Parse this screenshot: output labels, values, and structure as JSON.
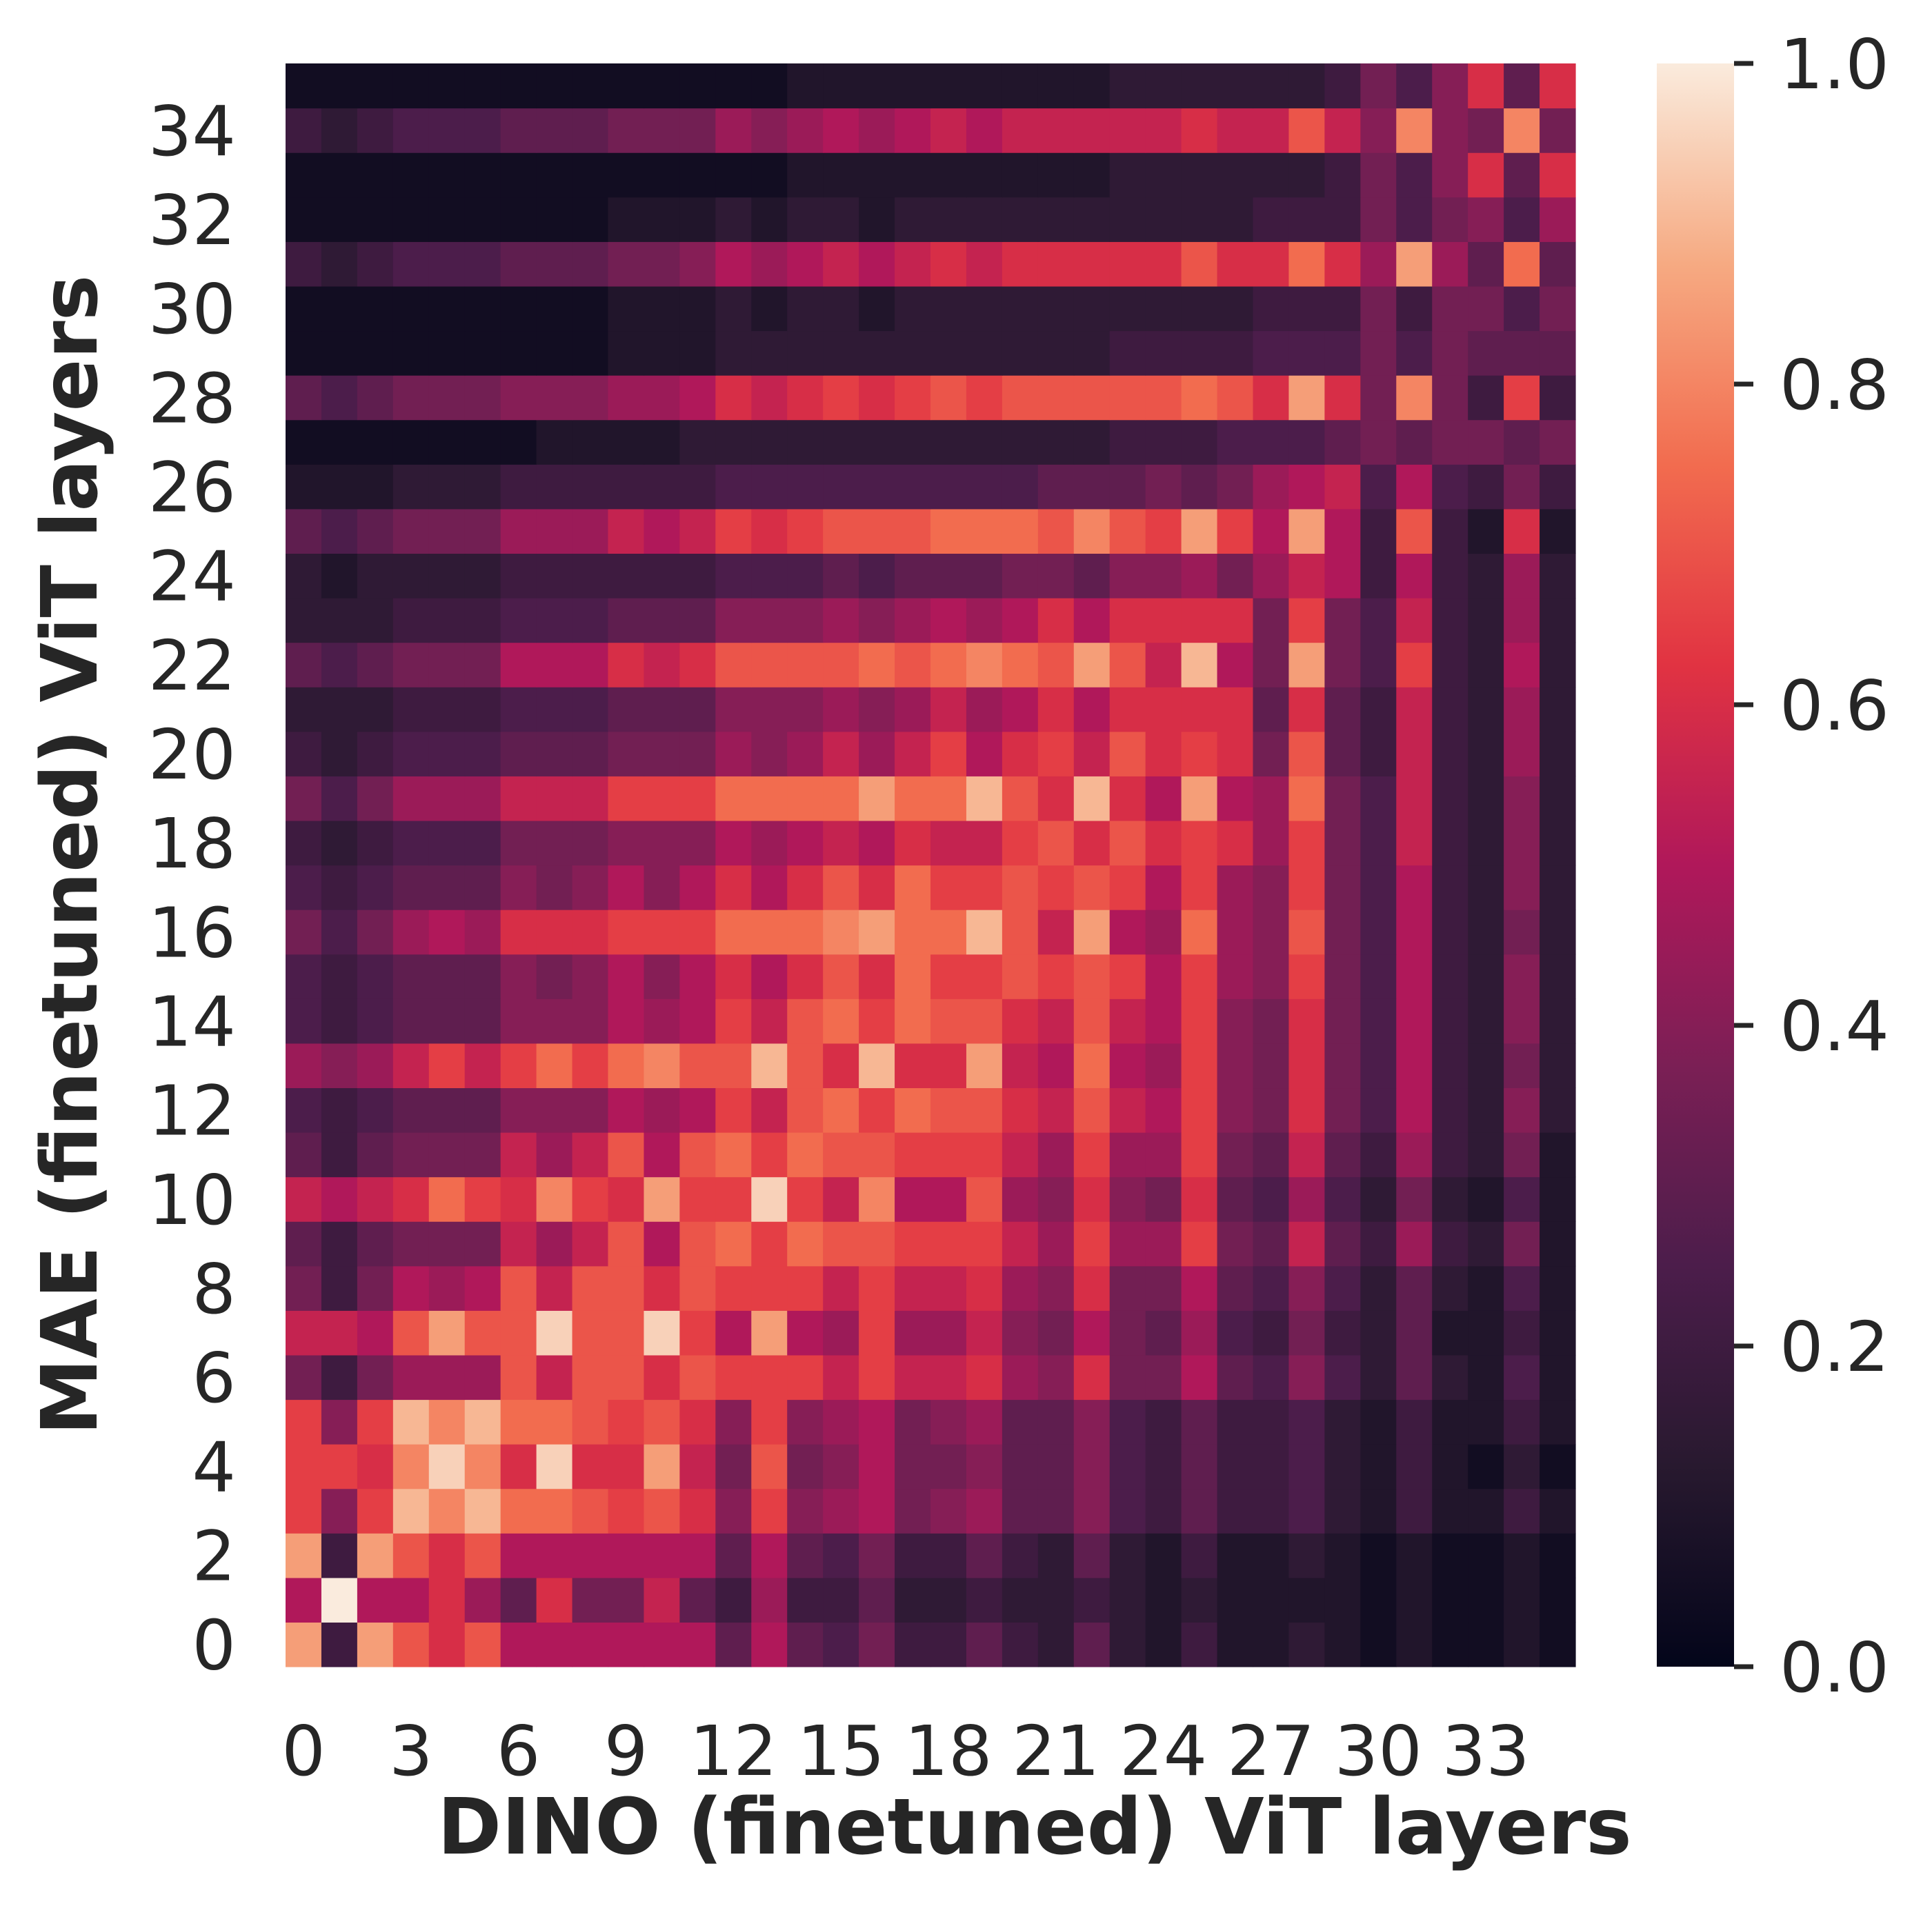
{
  "chart_data": {
    "type": "heatmap",
    "title": "",
    "xlabel": "DINO (finetuned) ViT layers",
    "ylabel": "MAE (finetuned) ViT layers",
    "x_tick_labels": [
      "0",
      "3",
      "6",
      "9",
      "12",
      "15",
      "18",
      "21",
      "24",
      "27",
      "30",
      "33"
    ],
    "x_tick_values": [
      0,
      3,
      6,
      9,
      12,
      15,
      18,
      21,
      24,
      27,
      30,
      33
    ],
    "y_tick_labels": [
      "0",
      "2",
      "4",
      "6",
      "8",
      "10",
      "12",
      "14",
      "16",
      "18",
      "20",
      "22",
      "24",
      "26",
      "28",
      "30",
      "32",
      "34"
    ],
    "y_tick_values": [
      0,
      2,
      4,
      6,
      8,
      10,
      12,
      14,
      16,
      18,
      20,
      22,
      24,
      26,
      28,
      30,
      32,
      34
    ],
    "n_cols": 36,
    "n_rows": 36,
    "colormap": "rocket",
    "colorbar": {
      "range": [
        0,
        1
      ],
      "tick_values": [
        0,
        0.2,
        0.4,
        0.6,
        0.8,
        1.0
      ],
      "tick_labels": [
        "0.0",
        "0.2",
        "0.4",
        "0.6",
        "0.8",
        "1.0"
      ]
    },
    "values": [
      [
        0.85,
        0.2,
        0.85,
        0.7,
        0.6,
        0.7,
        0.5,
        0.5,
        0.5,
        0.5,
        0.5,
        0.5,
        0.3,
        0.5,
        0.3,
        0.25,
        0.35,
        0.2,
        0.2,
        0.3,
        0.2,
        0.15,
        0.3,
        0.15,
        0.1,
        0.2,
        0.1,
        0.1,
        0.15,
        0.1,
        0.05,
        0.1,
        0.05,
        0.05,
        0.1,
        0.05
      ],
      [
        0.5,
        1.0,
        0.5,
        0.5,
        0.6,
        0.45,
        0.3,
        0.6,
        0.35,
        0.35,
        0.55,
        0.3,
        0.2,
        0.45,
        0.2,
        0.2,
        0.3,
        0.15,
        0.15,
        0.2,
        0.15,
        0.15,
        0.2,
        0.15,
        0.1,
        0.15,
        0.1,
        0.1,
        0.1,
        0.1,
        0.05,
        0.1,
        0.05,
        0.05,
        0.1,
        0.05
      ],
      [
        0.85,
        0.2,
        0.85,
        0.7,
        0.6,
        0.7,
        0.5,
        0.5,
        0.5,
        0.5,
        0.5,
        0.5,
        0.3,
        0.5,
        0.3,
        0.25,
        0.35,
        0.2,
        0.2,
        0.3,
        0.2,
        0.15,
        0.3,
        0.15,
        0.1,
        0.2,
        0.1,
        0.1,
        0.15,
        0.1,
        0.05,
        0.1,
        0.05,
        0.05,
        0.1,
        0.05
      ],
      [
        0.65,
        0.4,
        0.65,
        0.9,
        0.8,
        0.9,
        0.75,
        0.75,
        0.7,
        0.65,
        0.7,
        0.6,
        0.4,
        0.65,
        0.4,
        0.45,
        0.5,
        0.35,
        0.4,
        0.45,
        0.3,
        0.3,
        0.4,
        0.25,
        0.2,
        0.3,
        0.2,
        0.2,
        0.25,
        0.15,
        0.1,
        0.2,
        0.1,
        0.1,
        0.2,
        0.1
      ],
      [
        0.65,
        0.65,
        0.6,
        0.8,
        0.95,
        0.8,
        0.6,
        0.95,
        0.6,
        0.6,
        0.85,
        0.55,
        0.35,
        0.7,
        0.35,
        0.4,
        0.5,
        0.35,
        0.35,
        0.4,
        0.3,
        0.3,
        0.4,
        0.25,
        0.2,
        0.3,
        0.2,
        0.2,
        0.25,
        0.15,
        0.1,
        0.2,
        0.1,
        0.05,
        0.15,
        0.05
      ],
      [
        0.65,
        0.4,
        0.65,
        0.9,
        0.8,
        0.9,
        0.75,
        0.75,
        0.7,
        0.65,
        0.7,
        0.6,
        0.4,
        0.65,
        0.4,
        0.45,
        0.5,
        0.35,
        0.4,
        0.45,
        0.3,
        0.3,
        0.4,
        0.25,
        0.2,
        0.3,
        0.2,
        0.2,
        0.25,
        0.15,
        0.1,
        0.2,
        0.1,
        0.1,
        0.2,
        0.1
      ],
      [
        0.35,
        0.2,
        0.35,
        0.45,
        0.45,
        0.45,
        0.7,
        0.55,
        0.7,
        0.7,
        0.6,
        0.7,
        0.65,
        0.65,
        0.65,
        0.55,
        0.65,
        0.55,
        0.55,
        0.6,
        0.45,
        0.4,
        0.6,
        0.35,
        0.35,
        0.5,
        0.3,
        0.25,
        0.4,
        0.25,
        0.15,
        0.3,
        0.15,
        0.1,
        0.25,
        0.1
      ],
      [
        0.55,
        0.55,
        0.5,
        0.7,
        0.85,
        0.7,
        0.7,
        0.95,
        0.7,
        0.7,
        0.95,
        0.65,
        0.5,
        0.85,
        0.5,
        0.45,
        0.65,
        0.45,
        0.45,
        0.55,
        0.4,
        0.35,
        0.5,
        0.35,
        0.3,
        0.45,
        0.25,
        0.2,
        0.35,
        0.2,
        0.15,
        0.3,
        0.1,
        0.1,
        0.2,
        0.1
      ],
      [
        0.35,
        0.2,
        0.35,
        0.5,
        0.45,
        0.5,
        0.7,
        0.55,
        0.7,
        0.7,
        0.6,
        0.7,
        0.65,
        0.65,
        0.65,
        0.55,
        0.65,
        0.55,
        0.55,
        0.6,
        0.45,
        0.4,
        0.6,
        0.35,
        0.35,
        0.5,
        0.3,
        0.25,
        0.4,
        0.25,
        0.15,
        0.3,
        0.15,
        0.1,
        0.25,
        0.1
      ],
      [
        0.3,
        0.2,
        0.3,
        0.35,
        0.35,
        0.35,
        0.55,
        0.45,
        0.55,
        0.7,
        0.5,
        0.7,
        0.75,
        0.65,
        0.75,
        0.7,
        0.7,
        0.65,
        0.65,
        0.65,
        0.55,
        0.45,
        0.65,
        0.45,
        0.45,
        0.65,
        0.35,
        0.3,
        0.55,
        0.3,
        0.2,
        0.45,
        0.2,
        0.15,
        0.35,
        0.1
      ],
      [
        0.55,
        0.5,
        0.55,
        0.6,
        0.75,
        0.65,
        0.6,
        0.8,
        0.65,
        0.6,
        0.85,
        0.65,
        0.65,
        0.95,
        0.65,
        0.55,
        0.8,
        0.5,
        0.5,
        0.7,
        0.45,
        0.4,
        0.6,
        0.4,
        0.35,
        0.6,
        0.3,
        0.25,
        0.45,
        0.25,
        0.15,
        0.35,
        0.15,
        0.1,
        0.25,
        0.1
      ],
      [
        0.3,
        0.2,
        0.3,
        0.35,
        0.35,
        0.35,
        0.55,
        0.45,
        0.55,
        0.7,
        0.5,
        0.7,
        0.75,
        0.65,
        0.75,
        0.7,
        0.7,
        0.65,
        0.65,
        0.65,
        0.55,
        0.45,
        0.65,
        0.45,
        0.45,
        0.65,
        0.35,
        0.3,
        0.55,
        0.3,
        0.2,
        0.45,
        0.2,
        0.15,
        0.35,
        0.1
      ],
      [
        0.25,
        0.2,
        0.25,
        0.3,
        0.3,
        0.3,
        0.4,
        0.4,
        0.4,
        0.5,
        0.45,
        0.5,
        0.65,
        0.55,
        0.7,
        0.75,
        0.65,
        0.75,
        0.7,
        0.7,
        0.6,
        0.55,
        0.7,
        0.55,
        0.5,
        0.65,
        0.4,
        0.35,
        0.6,
        0.35,
        0.25,
        0.5,
        0.2,
        0.15,
        0.4,
        0.15
      ],
      [
        0.45,
        0.4,
        0.45,
        0.55,
        0.65,
        0.55,
        0.65,
        0.75,
        0.65,
        0.75,
        0.8,
        0.7,
        0.7,
        0.9,
        0.7,
        0.6,
        0.9,
        0.6,
        0.6,
        0.85,
        0.55,
        0.5,
        0.75,
        0.5,
        0.45,
        0.65,
        0.4,
        0.35,
        0.6,
        0.35,
        0.25,
        0.5,
        0.2,
        0.15,
        0.35,
        0.15
      ],
      [
        0.25,
        0.2,
        0.25,
        0.3,
        0.3,
        0.3,
        0.4,
        0.4,
        0.4,
        0.5,
        0.45,
        0.5,
        0.65,
        0.55,
        0.7,
        0.75,
        0.65,
        0.75,
        0.7,
        0.7,
        0.6,
        0.55,
        0.7,
        0.55,
        0.5,
        0.65,
        0.4,
        0.35,
        0.6,
        0.35,
        0.25,
        0.5,
        0.2,
        0.15,
        0.4,
        0.15
      ],
      [
        0.25,
        0.2,
        0.25,
        0.3,
        0.3,
        0.3,
        0.4,
        0.35,
        0.4,
        0.5,
        0.4,
        0.5,
        0.6,
        0.5,
        0.6,
        0.7,
        0.6,
        0.75,
        0.65,
        0.65,
        0.7,
        0.65,
        0.7,
        0.65,
        0.5,
        0.65,
        0.45,
        0.4,
        0.65,
        0.35,
        0.25,
        0.5,
        0.2,
        0.15,
        0.4,
        0.15
      ],
      [
        0.35,
        0.25,
        0.35,
        0.45,
        0.5,
        0.45,
        0.6,
        0.6,
        0.6,
        0.65,
        0.65,
        0.65,
        0.75,
        0.75,
        0.75,
        0.8,
        0.85,
        0.75,
        0.75,
        0.9,
        0.7,
        0.55,
        0.85,
        0.5,
        0.45,
        0.75,
        0.45,
        0.4,
        0.7,
        0.35,
        0.25,
        0.5,
        0.2,
        0.15,
        0.35,
        0.15
      ],
      [
        0.25,
        0.2,
        0.25,
        0.3,
        0.3,
        0.3,
        0.4,
        0.35,
        0.4,
        0.5,
        0.4,
        0.5,
        0.6,
        0.5,
        0.6,
        0.7,
        0.6,
        0.75,
        0.65,
        0.65,
        0.7,
        0.65,
        0.7,
        0.65,
        0.5,
        0.65,
        0.45,
        0.4,
        0.65,
        0.35,
        0.25,
        0.5,
        0.2,
        0.15,
        0.4,
        0.15
      ],
      [
        0.2,
        0.15,
        0.2,
        0.25,
        0.25,
        0.25,
        0.35,
        0.35,
        0.35,
        0.4,
        0.4,
        0.4,
        0.5,
        0.45,
        0.5,
        0.55,
        0.5,
        0.6,
        0.55,
        0.55,
        0.65,
        0.7,
        0.6,
        0.7,
        0.6,
        0.65,
        0.6,
        0.45,
        0.65,
        0.35,
        0.25,
        0.55,
        0.2,
        0.15,
        0.4,
        0.15
      ],
      [
        0.35,
        0.25,
        0.35,
        0.45,
        0.45,
        0.45,
        0.55,
        0.55,
        0.55,
        0.65,
        0.65,
        0.65,
        0.75,
        0.75,
        0.75,
        0.75,
        0.85,
        0.75,
        0.75,
        0.9,
        0.7,
        0.6,
        0.9,
        0.6,
        0.5,
        0.85,
        0.5,
        0.45,
        0.75,
        0.35,
        0.25,
        0.55,
        0.2,
        0.15,
        0.4,
        0.15
      ],
      [
        0.2,
        0.15,
        0.2,
        0.25,
        0.25,
        0.25,
        0.3,
        0.3,
        0.3,
        0.35,
        0.35,
        0.35,
        0.45,
        0.4,
        0.45,
        0.55,
        0.45,
        0.55,
        0.65,
        0.5,
        0.6,
        0.65,
        0.55,
        0.7,
        0.6,
        0.65,
        0.6,
        0.35,
        0.7,
        0.3,
        0.2,
        0.55,
        0.2,
        0.15,
        0.45,
        0.15
      ],
      [
        0.15,
        0.15,
        0.15,
        0.2,
        0.2,
        0.2,
        0.25,
        0.25,
        0.25,
        0.3,
        0.3,
        0.3,
        0.4,
        0.4,
        0.4,
        0.45,
        0.4,
        0.45,
        0.55,
        0.45,
        0.5,
        0.6,
        0.5,
        0.6,
        0.6,
        0.6,
        0.6,
        0.3,
        0.6,
        0.3,
        0.2,
        0.55,
        0.2,
        0.15,
        0.45,
        0.15
      ],
      [
        0.3,
        0.25,
        0.3,
        0.35,
        0.35,
        0.35,
        0.5,
        0.5,
        0.5,
        0.6,
        0.55,
        0.6,
        0.7,
        0.7,
        0.7,
        0.7,
        0.75,
        0.7,
        0.75,
        0.8,
        0.75,
        0.7,
        0.85,
        0.7,
        0.55,
        0.9,
        0.5,
        0.35,
        0.85,
        0.35,
        0.25,
        0.65,
        0.2,
        0.15,
        0.5,
        0.15
      ],
      [
        0.15,
        0.15,
        0.15,
        0.2,
        0.2,
        0.2,
        0.25,
        0.25,
        0.25,
        0.3,
        0.3,
        0.3,
        0.4,
        0.4,
        0.4,
        0.45,
        0.4,
        0.45,
        0.5,
        0.45,
        0.5,
        0.6,
        0.5,
        0.6,
        0.6,
        0.6,
        0.6,
        0.35,
        0.65,
        0.35,
        0.25,
        0.55,
        0.2,
        0.15,
        0.45,
        0.15
      ],
      [
        0.15,
        0.1,
        0.15,
        0.15,
        0.15,
        0.15,
        0.2,
        0.2,
        0.2,
        0.2,
        0.2,
        0.2,
        0.25,
        0.25,
        0.25,
        0.3,
        0.25,
        0.3,
        0.3,
        0.3,
        0.35,
        0.35,
        0.3,
        0.4,
        0.4,
        0.45,
        0.35,
        0.45,
        0.55,
        0.5,
        0.2,
        0.5,
        0.2,
        0.15,
        0.45,
        0.15
      ],
      [
        0.3,
        0.25,
        0.3,
        0.35,
        0.35,
        0.35,
        0.45,
        0.45,
        0.45,
        0.55,
        0.5,
        0.55,
        0.65,
        0.6,
        0.65,
        0.7,
        0.7,
        0.7,
        0.75,
        0.75,
        0.75,
        0.7,
        0.8,
        0.7,
        0.65,
        0.85,
        0.65,
        0.5,
        0.85,
        0.5,
        0.2,
        0.7,
        0.2,
        0.1,
        0.6,
        0.1
      ],
      [
        0.1,
        0.1,
        0.1,
        0.15,
        0.15,
        0.15,
        0.2,
        0.2,
        0.2,
        0.2,
        0.2,
        0.2,
        0.25,
        0.25,
        0.25,
        0.25,
        0.25,
        0.25,
        0.25,
        0.25,
        0.25,
        0.3,
        0.3,
        0.3,
        0.35,
        0.3,
        0.35,
        0.45,
        0.5,
        0.55,
        0.25,
        0.5,
        0.25,
        0.2,
        0.35,
        0.2
      ],
      [
        0.05,
        0.05,
        0.05,
        0.05,
        0.05,
        0.05,
        0.05,
        0.1,
        0.1,
        0.1,
        0.1,
        0.15,
        0.15,
        0.15,
        0.15,
        0.15,
        0.15,
        0.15,
        0.15,
        0.15,
        0.15,
        0.15,
        0.15,
        0.2,
        0.2,
        0.2,
        0.25,
        0.25,
        0.25,
        0.3,
        0.35,
        0.3,
        0.35,
        0.35,
        0.3,
        0.35
      ],
      [
        0.3,
        0.25,
        0.3,
        0.35,
        0.35,
        0.35,
        0.4,
        0.4,
        0.4,
        0.45,
        0.45,
        0.5,
        0.6,
        0.55,
        0.6,
        0.65,
        0.6,
        0.65,
        0.7,
        0.65,
        0.7,
        0.7,
        0.7,
        0.7,
        0.7,
        0.75,
        0.7,
        0.6,
        0.85,
        0.6,
        0.35,
        0.8,
        0.35,
        0.2,
        0.65,
        0.2
      ],
      [
        0.05,
        0.05,
        0.05,
        0.05,
        0.05,
        0.05,
        0.05,
        0.05,
        0.05,
        0.1,
        0.1,
        0.1,
        0.15,
        0.15,
        0.15,
        0.15,
        0.15,
        0.15,
        0.15,
        0.15,
        0.15,
        0.15,
        0.15,
        0.2,
        0.2,
        0.2,
        0.2,
        0.25,
        0.25,
        0.25,
        0.35,
        0.25,
        0.35,
        0.3,
        0.3,
        0.3
      ],
      [
        0.05,
        0.05,
        0.05,
        0.05,
        0.05,
        0.05,
        0.05,
        0.05,
        0.05,
        0.1,
        0.1,
        0.1,
        0.15,
        0.1,
        0.15,
        0.15,
        0.1,
        0.15,
        0.15,
        0.15,
        0.15,
        0.15,
        0.15,
        0.15,
        0.15,
        0.15,
        0.15,
        0.2,
        0.2,
        0.2,
        0.35,
        0.2,
        0.35,
        0.35,
        0.25,
        0.35
      ],
      [
        0.2,
        0.15,
        0.2,
        0.25,
        0.25,
        0.25,
        0.3,
        0.3,
        0.3,
        0.35,
        0.35,
        0.4,
        0.5,
        0.45,
        0.5,
        0.55,
        0.5,
        0.55,
        0.6,
        0.55,
        0.6,
        0.6,
        0.6,
        0.6,
        0.6,
        0.7,
        0.6,
        0.6,
        0.75,
        0.6,
        0.45,
        0.85,
        0.45,
        0.3,
        0.75,
        0.3
      ],
      [
        0.05,
        0.05,
        0.05,
        0.05,
        0.05,
        0.05,
        0.05,
        0.05,
        0.05,
        0.1,
        0.1,
        0.1,
        0.15,
        0.1,
        0.15,
        0.15,
        0.1,
        0.15,
        0.15,
        0.15,
        0.15,
        0.15,
        0.15,
        0.15,
        0.15,
        0.15,
        0.15,
        0.2,
        0.2,
        0.2,
        0.35,
        0.25,
        0.35,
        0.4,
        0.25,
        0.45
      ],
      [
        0.05,
        0.05,
        0.05,
        0.05,
        0.05,
        0.05,
        0.05,
        0.05,
        0.05,
        0.05,
        0.05,
        0.05,
        0.05,
        0.05,
        0.1,
        0.1,
        0.1,
        0.1,
        0.1,
        0.1,
        0.1,
        0.1,
        0.1,
        0.15,
        0.15,
        0.15,
        0.15,
        0.15,
        0.15,
        0.2,
        0.35,
        0.25,
        0.4,
        0.6,
        0.3,
        0.6
      ],
      [
        0.2,
        0.15,
        0.2,
        0.25,
        0.25,
        0.25,
        0.3,
        0.3,
        0.3,
        0.35,
        0.35,
        0.35,
        0.45,
        0.4,
        0.45,
        0.5,
        0.45,
        0.5,
        0.55,
        0.5,
        0.55,
        0.55,
        0.55,
        0.55,
        0.55,
        0.6,
        0.55,
        0.55,
        0.7,
        0.55,
        0.4,
        0.8,
        0.4,
        0.35,
        0.8,
        0.35
      ],
      [
        0.05,
        0.05,
        0.05,
        0.05,
        0.05,
        0.05,
        0.05,
        0.05,
        0.05,
        0.05,
        0.05,
        0.05,
        0.05,
        0.05,
        0.1,
        0.1,
        0.1,
        0.1,
        0.1,
        0.1,
        0.1,
        0.1,
        0.1,
        0.15,
        0.15,
        0.15,
        0.15,
        0.15,
        0.15,
        0.2,
        0.35,
        0.25,
        0.4,
        0.6,
        0.3,
        0.6
      ]
    ]
  }
}
